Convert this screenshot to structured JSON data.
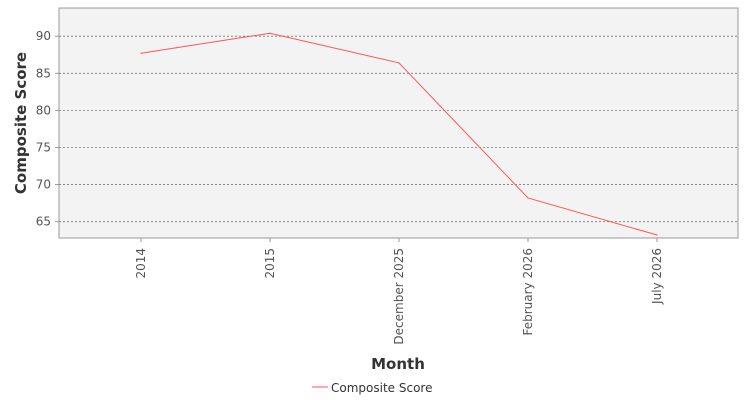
{
  "chart_data": {
    "type": "line",
    "title": "",
    "xlabel": "Month",
    "ylabel": "Composite Score",
    "categories": [
      "2014",
      "2015",
      "December 2025",
      "February 2026",
      "July 2026"
    ],
    "series": [
      {
        "name": "Composite Score",
        "values": [
          87.7,
          90.4,
          86.4,
          68.2,
          63.2
        ]
      }
    ],
    "yticks": [
      65,
      70,
      75,
      80,
      85,
      90
    ],
    "ylim": [
      62.8,
      93.8
    ],
    "grid": true,
    "legend": "bottom-center",
    "colors": {
      "series": "#ff5555",
      "plot_bg": "#f3f3f3",
      "grid": "#777777"
    }
  }
}
